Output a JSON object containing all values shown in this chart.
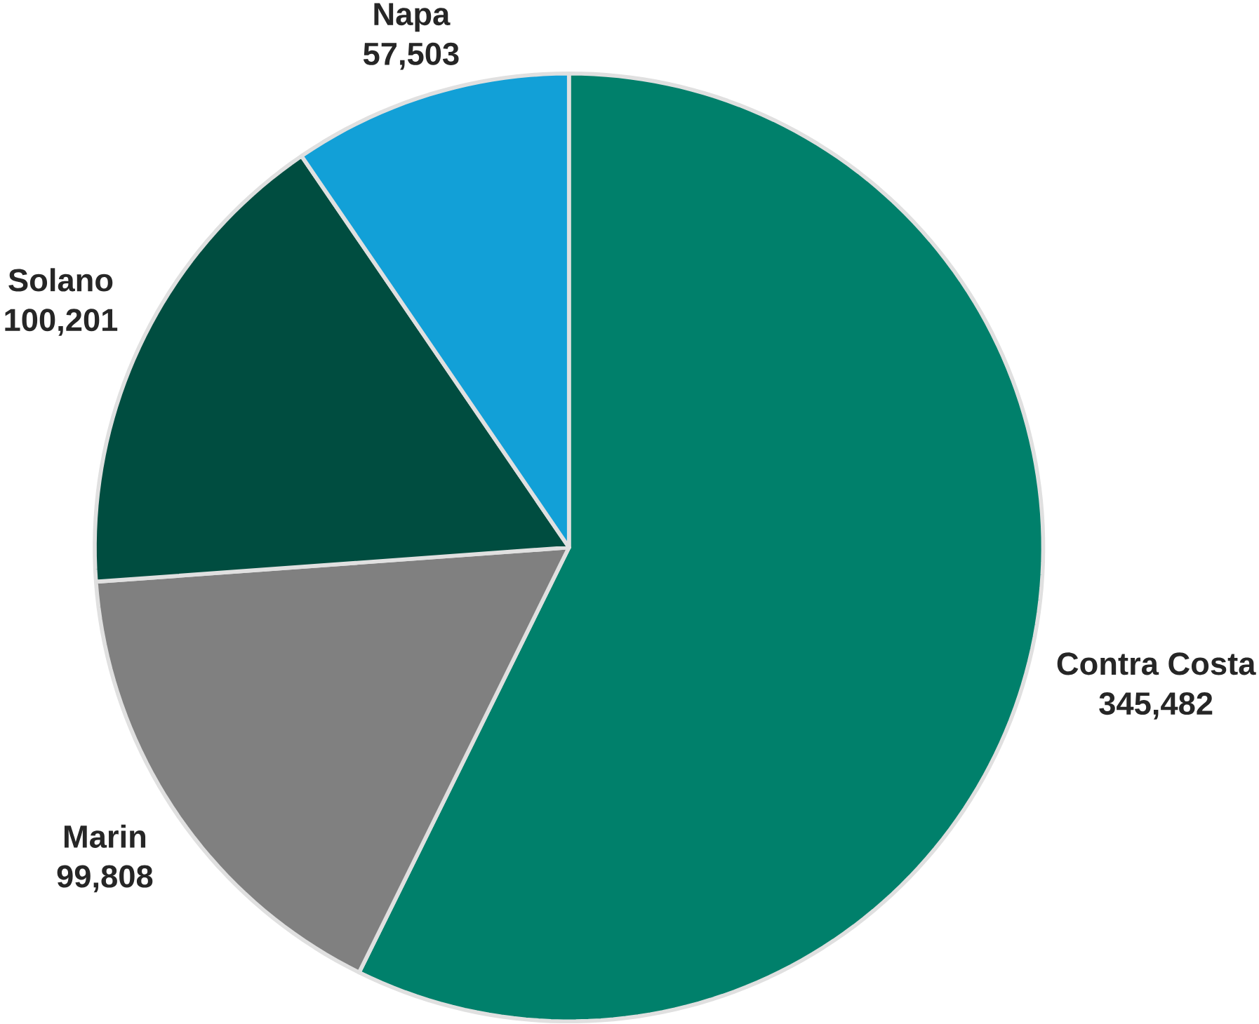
{
  "chart_data": {
    "type": "pie",
    "categories": [
      "Contra Costa",
      "Marin",
      "Solano",
      "Napa"
    ],
    "values": [
      345482,
      99808,
      100201,
      57503
    ],
    "value_labels": [
      "345,482",
      "99,808",
      "100,201",
      "57,503"
    ],
    "colors": [
      "#00806b",
      "#808080",
      "#004d40",
      "#12a0d7"
    ]
  }
}
